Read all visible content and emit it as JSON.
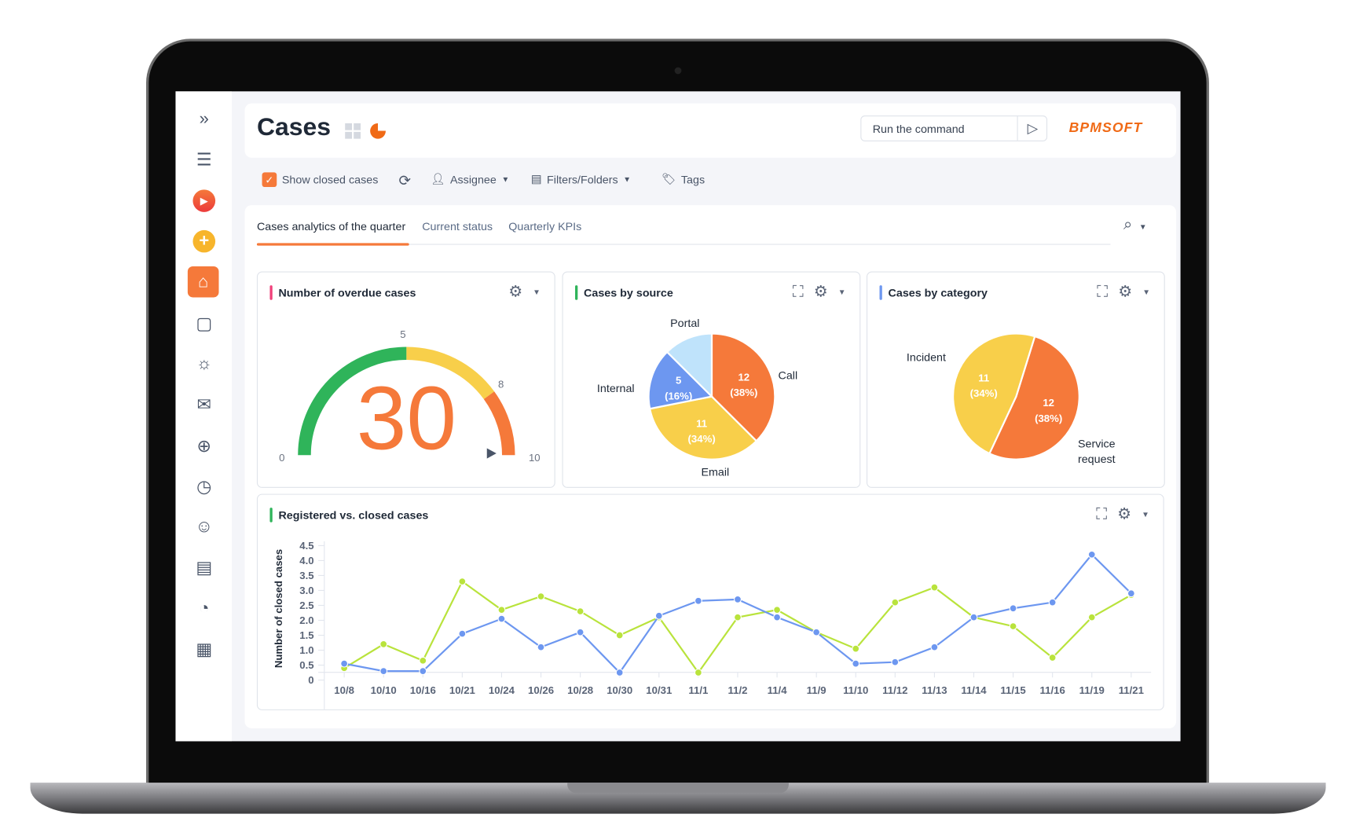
{
  "header": {
    "title": "Cases",
    "command_placeholder": "Run the command",
    "logo": "BPMSOFT"
  },
  "toolbar": {
    "show_closed": "Show closed cases",
    "show_closed_checked": true,
    "assignee": "Assignee",
    "filters": "Filters/Folders",
    "tags": "Tags"
  },
  "tabs": [
    {
      "label": "Cases analytics of the quarter",
      "active": true
    },
    {
      "label": "Current status"
    },
    {
      "label": "Quarterly KPIs"
    }
  ],
  "sidebar": {
    "items": [
      "expand-icon",
      "menu-icon",
      "process-icon",
      "add-icon",
      "home-icon",
      "contact-icon",
      "idea-icon",
      "mail-icon",
      "target-icon",
      "clock-icon",
      "users-icon",
      "document-icon",
      "pie-icon",
      "calendar-icon"
    ]
  },
  "colors": {
    "accent": "#f5793a",
    "green": "#2fb45a",
    "yellow": "#f8cf4a",
    "blue": "#6d97f0",
    "lime": "#b9e33c",
    "lightblue": "#bfe3fb"
  },
  "widgets": {
    "overdue": {
      "title": "Number of overdue cases",
      "value": "30",
      "ticks": [
        "0",
        "5",
        "8",
        "10"
      ],
      "min": 0,
      "max": 10,
      "bands": [
        {
          "from": 0,
          "to": 5,
          "color": "#2fb45a"
        },
        {
          "from": 5,
          "to": 8,
          "color": "#f8cf4a"
        },
        {
          "from": 8,
          "to": 10,
          "color": "#f5793a"
        }
      ]
    },
    "source": {
      "title": "Cases by source"
    },
    "category": {
      "title": "Cases by category"
    },
    "registered": {
      "title": "Registered vs. closed cases"
    }
  },
  "chart_data": [
    {
      "type": "pie",
      "title": "Cases by source",
      "slices": [
        {
          "label": "Call",
          "value": 12,
          "text": "12",
          "pct": "(38%)",
          "color": "#f5793a"
        },
        {
          "label": "Email",
          "value": 11,
          "text": "11",
          "pct": "(34%)",
          "color": "#f8cf4a"
        },
        {
          "label": "Internal",
          "value": 5,
          "text": "5",
          "pct": "(16%)",
          "color": "#6d97f0"
        },
        {
          "label": "Portal",
          "value": 4,
          "text": "",
          "pct": "",
          "color": "#bfe3fb"
        }
      ]
    },
    {
      "type": "pie",
      "title": "Cases by category",
      "slices": [
        {
          "label": "Service request",
          "value": 12,
          "text": "12",
          "pct": "(38%)",
          "color": "#f5793a"
        },
        {
          "label": "Incident",
          "value": 11,
          "text": "11",
          "pct": "(34%)",
          "color": "#f8cf4a"
        }
      ]
    },
    {
      "type": "line",
      "title": "Registered vs. closed cases",
      "ylabel": "Number of closed cases",
      "ylim": [
        0,
        4.5
      ],
      "yticks": [
        "0",
        "0.5",
        "1.0",
        "1.5",
        "2.0",
        "2.5",
        "3.0",
        "3.5",
        "4.0",
        "4.5"
      ],
      "categories": [
        "10/8",
        "10/10",
        "10/16",
        "10/21",
        "10/24",
        "10/26",
        "10/28",
        "10/30",
        "10/31",
        "11/1",
        "11/2",
        "11/4",
        "11/9",
        "11/10",
        "11/12",
        "11/13",
        "11/14",
        "11/15",
        "11/16",
        "11/19",
        "11/21"
      ],
      "series": [
        {
          "color": "#b9e33c",
          "values": [
            0.4,
            1.2,
            0.65,
            3.3,
            2.35,
            2.8,
            2.3,
            1.5,
            2.1,
            0.25,
            2.1,
            2.35,
            1.6,
            1.05,
            2.6,
            3.1,
            2.1,
            1.8,
            0.75,
            2.1,
            2.85
          ]
        },
        {
          "color": "#6d97f0",
          "values": [
            0.55,
            0.3,
            0.3,
            1.55,
            2.05,
            1.1,
            1.6,
            0.25,
            2.15,
            2.65,
            2.7,
            2.1,
            1.6,
            0.55,
            0.6,
            1.1,
            2.1,
            2.4,
            2.6,
            4.2,
            2.9
          ]
        }
      ]
    }
  ]
}
